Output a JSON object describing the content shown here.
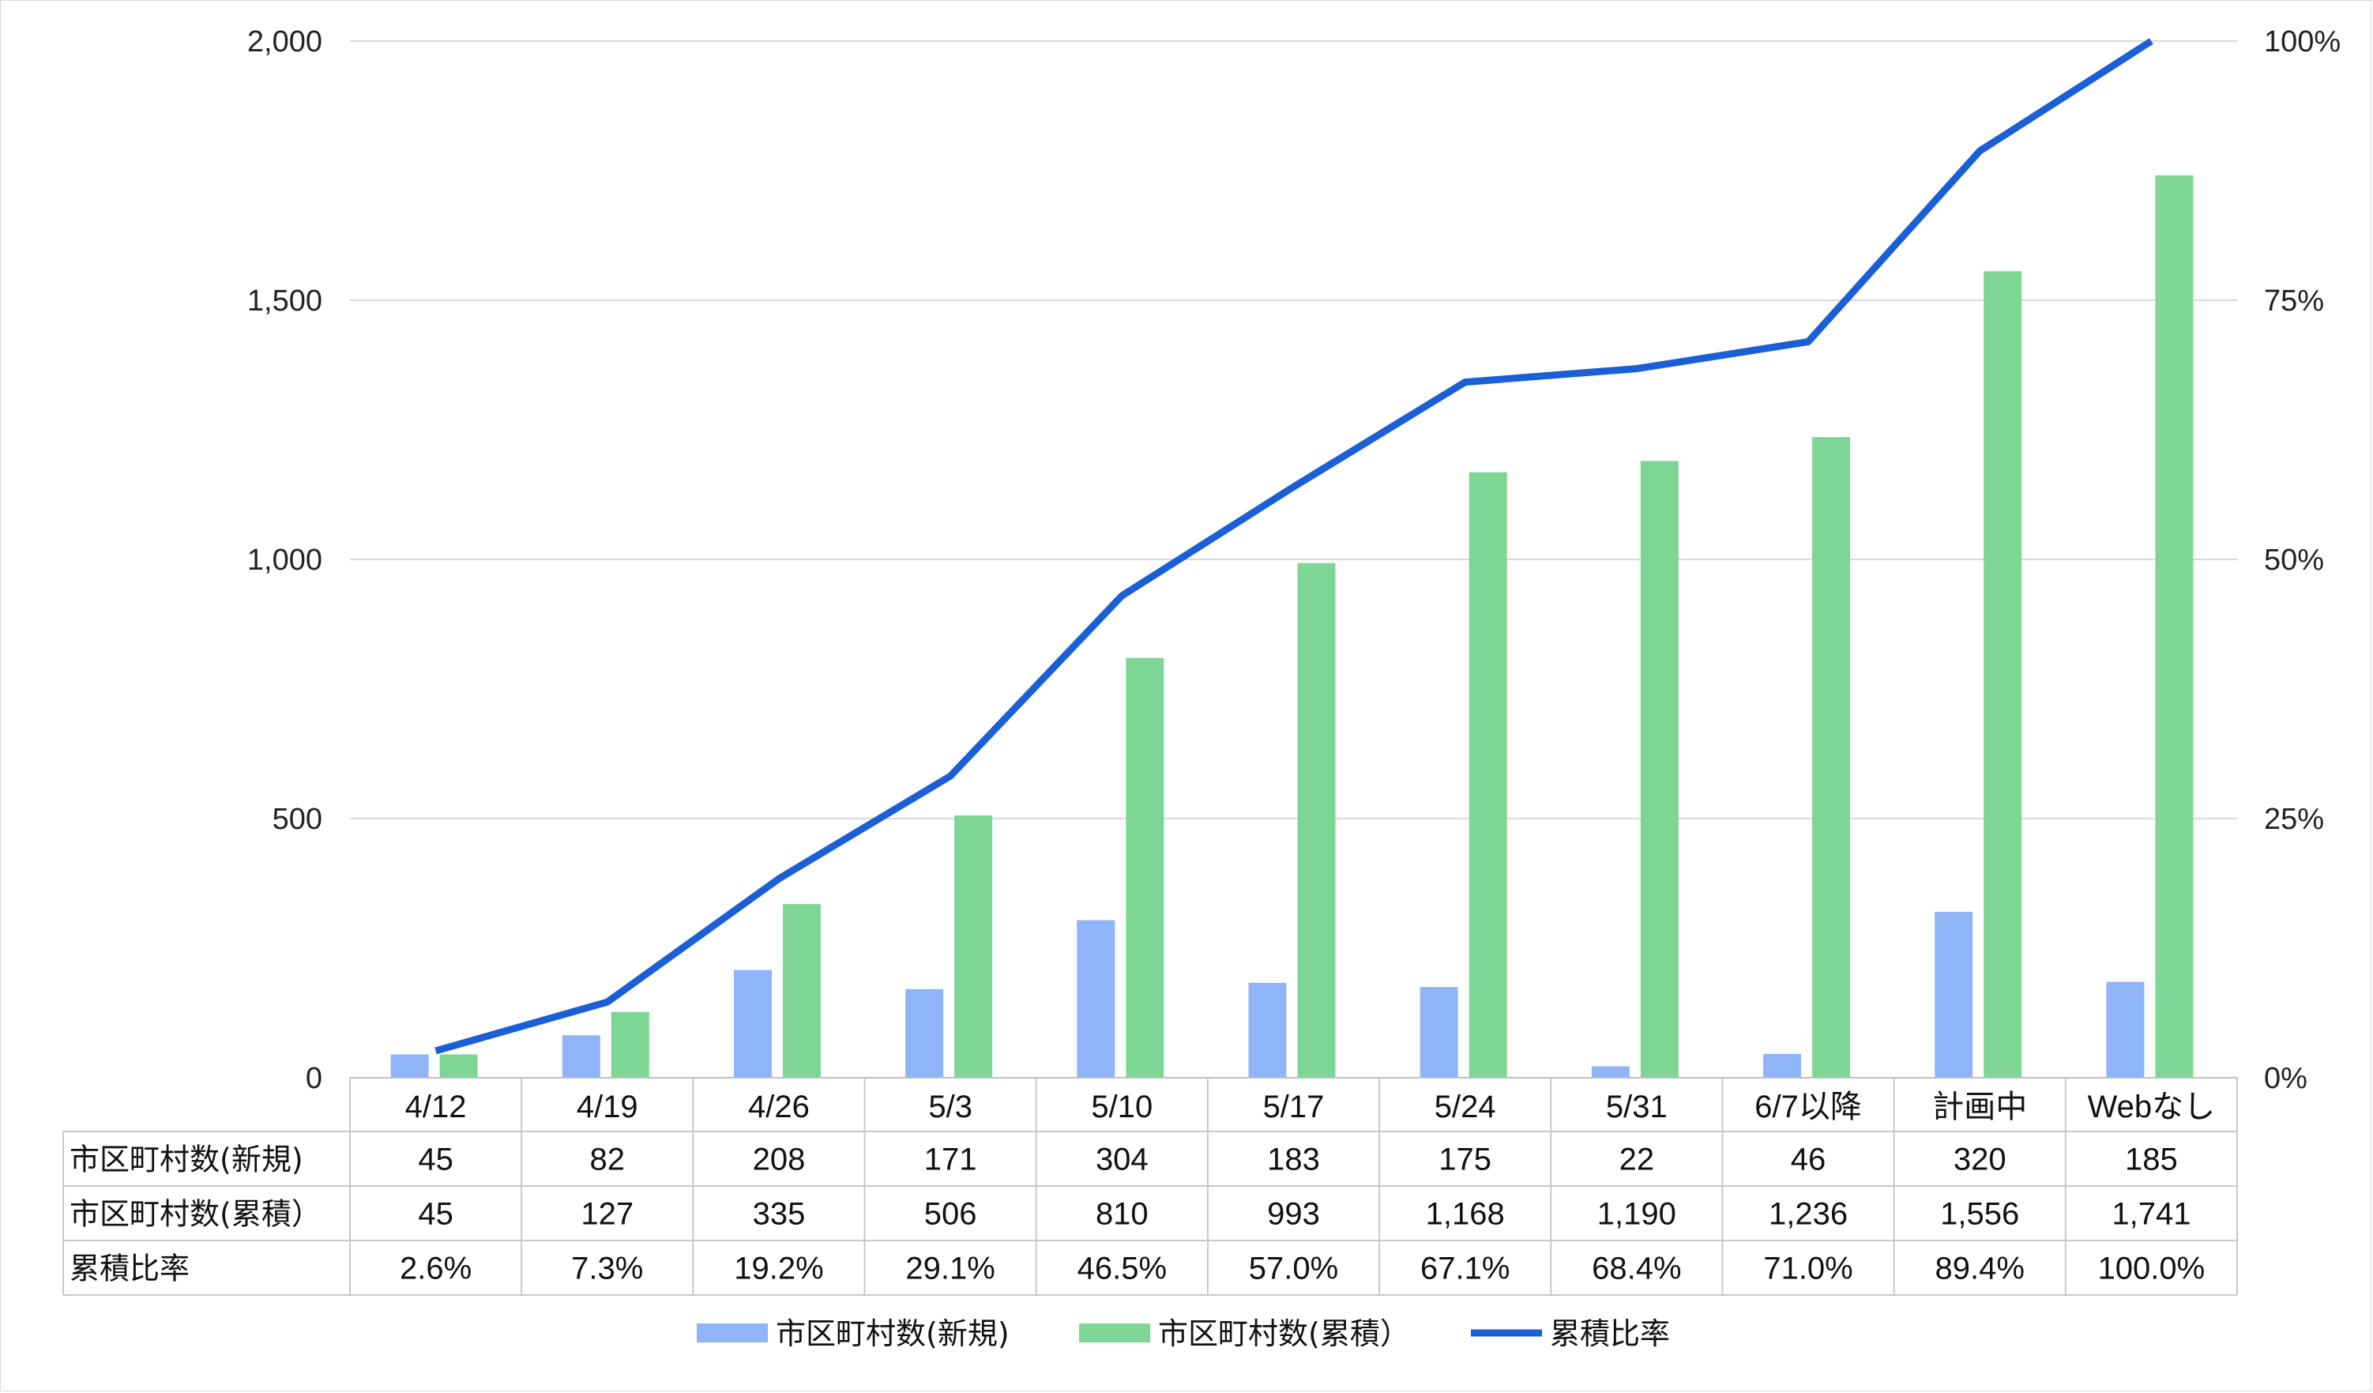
{
  "chart_data": {
    "type": "bar",
    "categories": [
      "4/12",
      "4/19",
      "4/26",
      "5/3",
      "5/10",
      "5/17",
      "5/24",
      "5/31",
      "6/7以降",
      "計画中",
      "Webなし"
    ],
    "series": [
      {
        "name": "市区町村数(新規)",
        "kind": "bar",
        "axis": "left",
        "color": "#8fb4f7",
        "values": [
          45,
          82,
          208,
          171,
          304,
          183,
          175,
          22,
          46,
          320,
          185
        ],
        "labels": [
          "45",
          "82",
          "208",
          "171",
          "304",
          "183",
          "175",
          "22",
          "46",
          "320",
          "185"
        ]
      },
      {
        "name": "市区町村数(累積）",
        "kind": "bar",
        "axis": "left",
        "color": "#7dd693",
        "values": [
          45,
          127,
          335,
          506,
          810,
          993,
          1168,
          1190,
          1236,
          1556,
          1741
        ],
        "labels": [
          "45",
          "127",
          "335",
          "506",
          "810",
          "993",
          "1,168",
          "1,190",
          "1,236",
          "1,556",
          "1,741"
        ]
      },
      {
        "name": "累積比率",
        "kind": "line",
        "axis": "right",
        "color": "#1a5fd6",
        "values": [
          2.6,
          7.3,
          19.2,
          29.1,
          46.5,
          57.0,
          67.1,
          68.4,
          71.0,
          89.4,
          100.0
        ],
        "labels": [
          "2.6%",
          "7.3%",
          "19.2%",
          "29.1%",
          "46.5%",
          "57.0%",
          "67.1%",
          "68.4%",
          "71.0%",
          "89.4%",
          "100.0%"
        ]
      }
    ],
    "table_row_labels": [
      "市区町村数(新規)",
      "市区町村数(累積）",
      "累積比率"
    ],
    "y_left": {
      "min": 0,
      "max": 2000,
      "ticks": [
        0,
        500,
        1000,
        1500,
        2000
      ],
      "tick_labels": [
        "0",
        "500",
        "1,000",
        "1,500",
        "2,000"
      ]
    },
    "y_right": {
      "min": 0,
      "max": 100,
      "ticks": [
        0,
        25,
        50,
        75,
        100
      ],
      "tick_labels": [
        "0%",
        "25%",
        "50%",
        "75%",
        "100%"
      ]
    },
    "grid": true,
    "legend_position": "bottom",
    "data_table": true
  }
}
